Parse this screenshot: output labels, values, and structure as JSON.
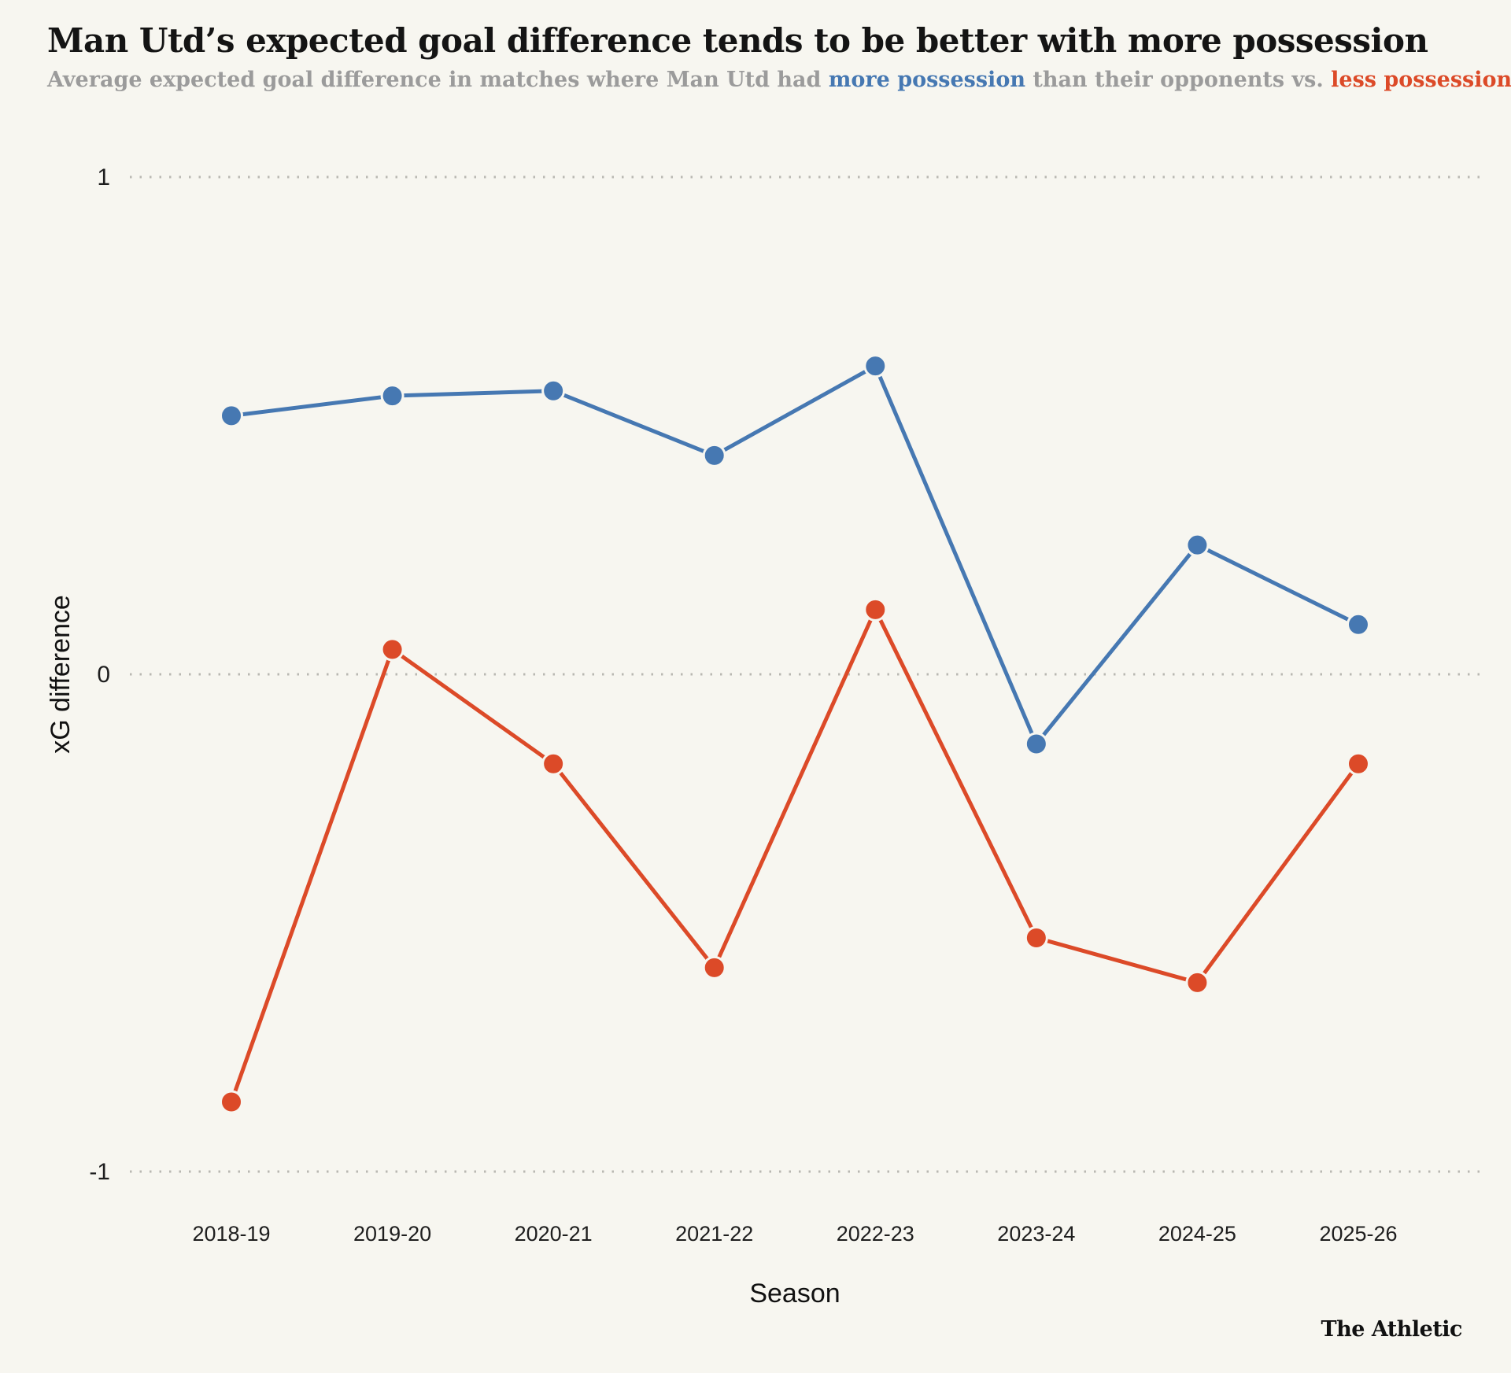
{
  "header": {
    "title": "Man Utd’s expected goal difference tends to be better with more possession",
    "subtitle": {
      "prefix": "Average expected goal difference in matches where Man Utd had ",
      "more_label": "more possession",
      "middle": " than their opponents vs. ",
      "less_label": "less possession"
    }
  },
  "footer": {
    "brand": "The Athletic"
  },
  "colors": {
    "background": "#f7f6f0",
    "title": "#141414",
    "subtitle_gray": "#9b9b9b",
    "grid": "#b9b8b2",
    "axis_text": "#1e1e1e",
    "blue": "#4678b2",
    "red": "#dc4a28"
  },
  "chart_data": {
    "type": "line",
    "title": "Man Utd’s expected goal difference tends to be better with more possession",
    "subtitle": "Average expected goal difference in matches where Man Utd had more possession than their opponents vs. less possession",
    "categories": [
      "2018-19",
      "2019-20",
      "2020-21",
      "2021-22",
      "2022-23",
      "2023-24",
      "2024-25",
      "2025-26"
    ],
    "series": [
      {
        "name": "more possession",
        "color": "#4678b2",
        "values": [
          0.52,
          0.56,
          0.57,
          0.44,
          0.62,
          -0.14,
          0.26,
          0.1
        ]
      },
      {
        "name": "less possession",
        "color": "#dc4a28",
        "values": [
          -0.86,
          0.05,
          -0.18,
          -0.59,
          0.13,
          -0.53,
          -0.62,
          -0.18
        ]
      }
    ],
    "xlabel": "Season",
    "ylabel": "xG difference",
    "yticks": [
      1,
      0,
      -1
    ],
    "ytick_labels": [
      "1",
      "0",
      "-1"
    ],
    "ylim": [
      -1.15,
      1.1
    ],
    "grid": "dotted-horizontal",
    "legend": "in-subtitle",
    "marker": "circle",
    "source": "The Athletic"
  }
}
